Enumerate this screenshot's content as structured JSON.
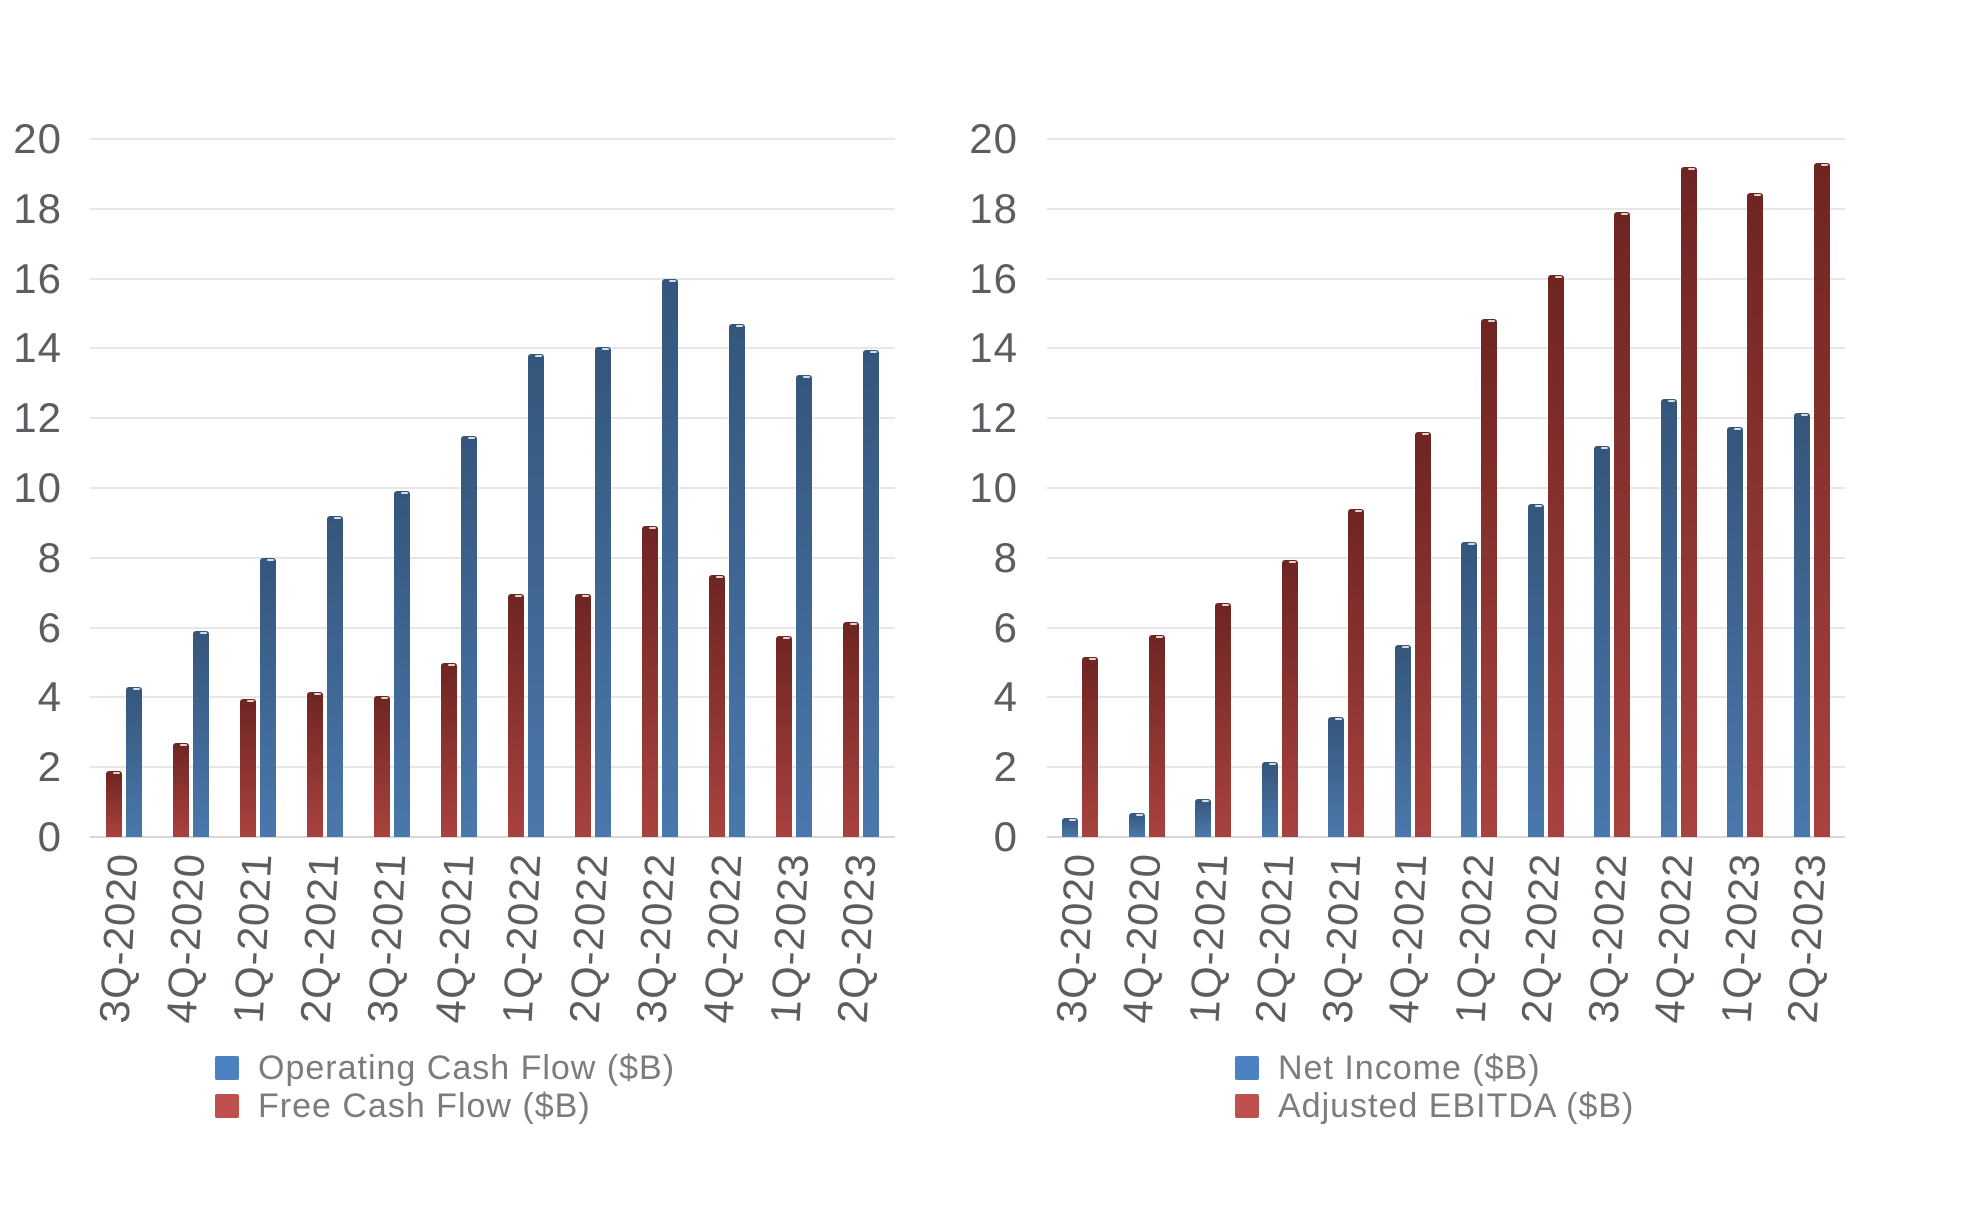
{
  "chart_data": [
    {
      "type": "bar",
      "title": "",
      "xlabel": "",
      "ylabel": "",
      "categories": [
        "3Q-2020",
        "4Q-2020",
        "1Q-2021",
        "2Q-2021",
        "3Q-2021",
        "4Q-2021",
        "1Q-2022",
        "2Q-2022",
        "3Q-2022",
        "4Q-2022",
        "1Q-2023",
        "2Q-2023"
      ],
      "series": [
        {
          "name": "Operating Cash Flow ($B)",
          "legend_color": "#4d82c2",
          "bar_gradient_top": "#35567c",
          "bar_gradient_bottom": "#4a78ac",
          "pair_position": 1,
          "values": [
            4.3,
            5.9,
            8.0,
            9.2,
            9.9,
            11.5,
            13.85,
            14.05,
            16.0,
            14.7,
            13.25,
            13.95
          ]
        },
        {
          "name": "Free Cash Flow ($B)",
          "legend_color": "#c0504d",
          "bar_gradient_top": "#6e2522",
          "bar_gradient_bottom": "#a9423e",
          "pair_position": 0,
          "values": [
            1.9,
            2.7,
            3.95,
            4.15,
            4.05,
            5.0,
            6.95,
            6.95,
            8.9,
            7.5,
            5.75,
            6.15
          ]
        }
      ],
      "ylim": [
        0,
        20
      ],
      "ytick_step": 2,
      "ytick_labels": [
        "0",
        "2",
        "4",
        "6",
        "8",
        "10",
        "12",
        "14",
        "16",
        "18",
        "20"
      ],
      "grid": true,
      "legend_position": "bottom"
    },
    {
      "type": "bar",
      "title": "",
      "xlabel": "",
      "ylabel": "",
      "categories": [
        "3Q-2020",
        "4Q-2020",
        "1Q-2021",
        "2Q-2021",
        "3Q-2021",
        "4Q-2021",
        "1Q-2022",
        "2Q-2022",
        "3Q-2022",
        "4Q-2022",
        "1Q-2023",
        "2Q-2023"
      ],
      "series": [
        {
          "name": "Net Income ($B)",
          "legend_color": "#4d82c2",
          "bar_gradient_top": "#35567c",
          "bar_gradient_bottom": "#4a78ac",
          "pair_position": 0,
          "values": [
            0.55,
            0.7,
            1.1,
            2.15,
            3.45,
            5.5,
            8.45,
            9.55,
            11.2,
            12.55,
            11.75,
            12.15
          ]
        },
        {
          "name": "Adjusted EBITDA ($B)",
          "legend_color": "#c0504d",
          "bar_gradient_top": "#6e2522",
          "bar_gradient_bottom": "#a9423e",
          "pair_position": 1,
          "values": [
            5.15,
            5.8,
            6.7,
            7.95,
            9.4,
            11.6,
            14.85,
            16.1,
            17.9,
            19.2,
            18.45,
            19.3
          ]
        }
      ],
      "ylim": [
        0,
        20
      ],
      "ytick_step": 2,
      "ytick_labels": [
        "0",
        "2",
        "4",
        "6",
        "8",
        "10",
        "12",
        "14",
        "16",
        "18",
        "20"
      ],
      "grid": true,
      "legend_position": "bottom"
    }
  ]
}
